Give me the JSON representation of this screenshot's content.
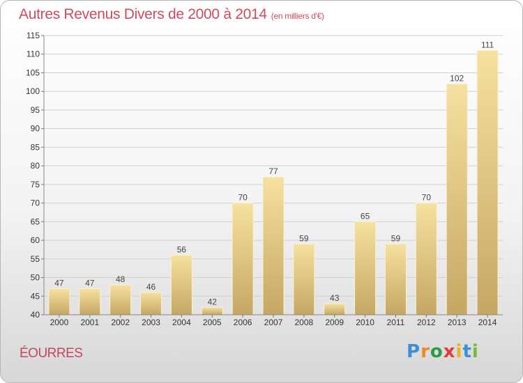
{
  "title": "Autres Revenus Divers de 2000 à 2014",
  "subtitle": "(en milliers d'€)",
  "town": "ÉOURRES",
  "logo": {
    "letters": [
      "P",
      "r",
      "o",
      "x",
      "i",
      "t",
      "i"
    ],
    "colors": [
      "#3a8fd6",
      "#f08a1c",
      "#2a9b46",
      "#e53b3b",
      "#f0b21c",
      "#3a8fd6",
      "#7ab83a"
    ]
  },
  "colors": {
    "bar_light": "#f6e1a0",
    "bar_dark": "#c5a763",
    "grid": "#cfcfcf",
    "title": "#d14a5e"
  },
  "chart_data": {
    "type": "bar",
    "title": "Autres Revenus Divers de 2000 à 2014",
    "subtitle": "(en milliers d'€)",
    "categories": [
      "2000",
      "2001",
      "2002",
      "2003",
      "2004",
      "2005",
      "2006",
      "2007",
      "2008",
      "2009",
      "2010",
      "2011",
      "2012",
      "2013",
      "2014"
    ],
    "values": [
      47,
      47,
      48,
      46,
      56,
      42,
      70,
      77,
      59,
      43,
      65,
      59,
      70,
      102,
      111
    ],
    "ylim": [
      40,
      115
    ],
    "yticks": [
      40,
      45,
      50,
      55,
      60,
      65,
      70,
      75,
      80,
      85,
      90,
      95,
      100,
      105,
      110,
      115
    ],
    "xlabel": "",
    "ylabel": "",
    "grid": true,
    "data_labels": true
  }
}
